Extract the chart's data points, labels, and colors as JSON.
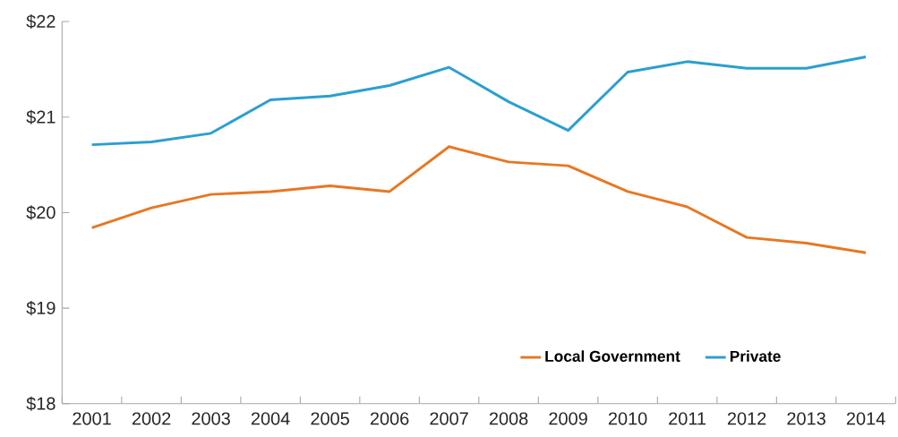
{
  "chart_data": {
    "type": "line",
    "categories": [
      "2001",
      "2002",
      "2003",
      "2004",
      "2005",
      "2006",
      "2007",
      "2008",
      "2009",
      "2010",
      "2011",
      "2012",
      "2013",
      "2014"
    ],
    "series": [
      {
        "name": "Local Government",
        "color": "#e87722",
        "values": [
          19.84,
          20.05,
          20.19,
          20.22,
          20.28,
          20.22,
          20.69,
          20.53,
          20.49,
          20.22,
          20.06,
          19.74,
          19.68,
          19.58
        ]
      },
      {
        "name": "Private",
        "color": "#2a9fd0",
        "values": [
          20.71,
          20.74,
          20.83,
          21.18,
          21.22,
          21.33,
          21.52,
          21.16,
          20.86,
          21.47,
          21.58,
          21.51,
          21.51,
          21.63
        ]
      }
    ],
    "ylim": [
      18,
      22
    ],
    "yticks": [
      {
        "value": 18,
        "label": "$18"
      },
      {
        "value": 19,
        "label": "$19"
      },
      {
        "value": 20,
        "label": "$20"
      },
      {
        "value": 21,
        "label": "$21"
      },
      {
        "value": 22,
        "label": "$22"
      }
    ],
    "grid": false,
    "legend": "bottom right",
    "marker": "none",
    "line_style": "solid"
  }
}
